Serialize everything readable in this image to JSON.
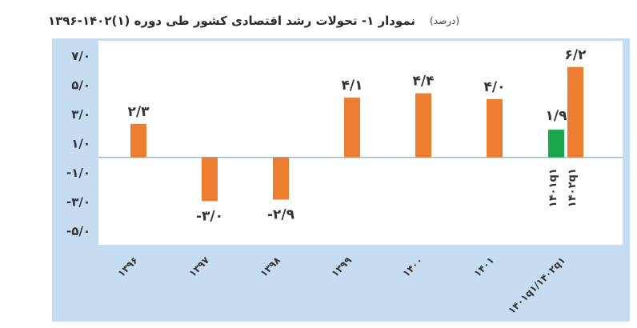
{
  "chart_data": {
    "type": "bar",
    "title": "نمودار ۱- تحولات رشد اقتصادی کشور طی دوره (۱)۱۴۰۲-۱۳۹۶",
    "unit": "(درصد)",
    "xlabel": "",
    "ylabel": "",
    "ylim": [
      -6,
      8
    ],
    "yticks": [
      7,
      5,
      3,
      1,
      -1,
      -3,
      -5
    ],
    "ytick_labels": [
      "۷/۰",
      "۵/۰",
      "۳/۰",
      "۱/۰",
      "-۱/۰",
      "-۳/۰",
      "-۵/۰"
    ],
    "grid": false,
    "categories": [
      "۱۳۹۶",
      "۱۳۹۷",
      "۱۳۹۸",
      "۱۳۹۹",
      "۱۴۰۰",
      "۱۴۰۱",
      "۱۴۰۱q۱/۱۴۰۲q۱"
    ],
    "series": [
      {
        "name": "",
        "color": "#ed7d31",
        "values": [
          2.3,
          -3.0,
          -2.9,
          4.1,
          4.4,
          4.0,
          6.2
        ],
        "labels": [
          "۲/۳",
          "-۳/۰",
          "-۲/۹",
          "۴/۱",
          "۴/۴",
          "۴/۰",
          "۶/۲"
        ]
      },
      {
        "name": "",
        "color": "#1aa64a",
        "values": [
          null,
          null,
          null,
          null,
          null,
          null,
          1.9
        ],
        "labels": [
          "",
          "",
          "",
          "",
          "",
          "",
          "۱/۹"
        ]
      }
    ],
    "bar_annotations": [
      "۱۴۰۱q۱",
      "۱۴۰۲q۱"
    ],
    "colors": {
      "background": "#c5dcf1",
      "plot": "#ffffff",
      "axis": "#8aa9c8"
    }
  }
}
